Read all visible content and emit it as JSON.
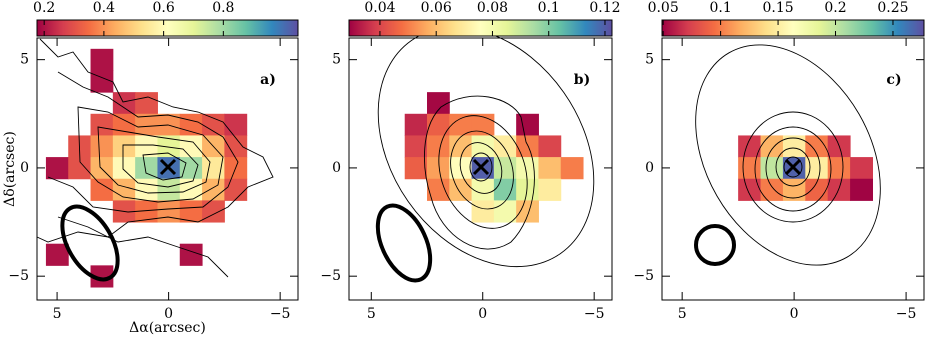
{
  "chart_data": [
    {
      "type": "heatmap",
      "label": "a)",
      "x_label": "Δα(arcsec)",
      "y_label": "Δδ(arcsec)",
      "colormap": [
        "#9e0142",
        "#d53e4f",
        "#f46d43",
        "#fdae61",
        "#fee08b",
        "#ffffbf",
        "#e6f598",
        "#abdda4",
        "#66c2a5",
        "#3288bd",
        "#5e4fa2"
      ],
      "clim": [
        0.176,
        1.05
      ],
      "colorbar_ticks": [
        0.2,
        0.4,
        0.6,
        0.8
      ],
      "xlim": [
        5.9,
        -5.8
      ],
      "ylim": [
        -6.1,
        6
      ],
      "xticks": [
        5,
        0,
        {
          "value": -5,
          "label": "−5"
        }
      ],
      "yticks": [
        5,
        0,
        {
          "value": -5,
          "label": "−5"
        }
      ],
      "x": [
        5,
        4,
        3,
        2,
        1,
        0,
        -1,
        -2,
        -3,
        -4,
        -5
      ],
      "y": [
        5,
        4,
        3,
        2,
        1,
        0,
        -1,
        -2,
        -3,
        -4,
        -5
      ],
      "z": [
        [
          null,
          null,
          0.2,
          null,
          null,
          null,
          null,
          null,
          null,
          null,
          null
        ],
        [
          null,
          null,
          0.2,
          null,
          null,
          null,
          null,
          null,
          null,
          null,
          null
        ],
        [
          null,
          null,
          null,
          0.25,
          0.3,
          null,
          null,
          null,
          null,
          null,
          null
        ],
        [
          null,
          null,
          0.3,
          0.35,
          0.4,
          0.4,
          0.35,
          0.3,
          0.25,
          null,
          null
        ],
        [
          null,
          0.3,
          0.4,
          0.5,
          0.6,
          0.7,
          0.6,
          0.45,
          0.3,
          null,
          null
        ],
        [
          0.2,
          0.3,
          0.45,
          0.6,
          0.8,
          1.0,
          0.8,
          0.55,
          0.35,
          null,
          null
        ],
        [
          null,
          null,
          0.35,
          0.45,
          0.6,
          0.75,
          0.6,
          0.45,
          0.3,
          null,
          null
        ],
        [
          null,
          null,
          null,
          0.3,
          0.35,
          0.4,
          0.35,
          0.3,
          null,
          null,
          null
        ],
        [
          null,
          null,
          null,
          null,
          null,
          null,
          null,
          null,
          null,
          null,
          null
        ],
        [
          0.2,
          null,
          null,
          null,
          null,
          null,
          0.2,
          null,
          null,
          null,
          null
        ],
        [
          null,
          null,
          0.2,
          null,
          null,
          null,
          null,
          null,
          null,
          null,
          null
        ]
      ]
    },
    {
      "type": "heatmap",
      "label": "b)",
      "colormap": [
        "#9e0142",
        "#d53e4f",
        "#f46d43",
        "#fdae61",
        "#fee08b",
        "#ffffbf",
        "#e6f598",
        "#abdda4",
        "#66c2a5",
        "#3288bd",
        "#5e4fa2"
      ],
      "clim": [
        0.029,
        0.1225
      ],
      "colorbar_ticks": [
        0.04,
        0.06,
        0.08,
        0.1,
        0.12
      ],
      "xlim": [
        6,
        -5.8
      ],
      "ylim": [
        -6.1,
        6
      ],
      "xticks": [
        5,
        0,
        {
          "value": -5,
          "label": "−5"
        }
      ],
      "yticks": [
        5,
        0,
        {
          "value": -5,
          "label": "−5"
        }
      ],
      "x": [
        5,
        4,
        3,
        2,
        1,
        0,
        -1,
        -2,
        -3,
        -4,
        -5
      ],
      "y": [
        3,
        2,
        1,
        0,
        -1,
        -2
      ],
      "z": [
        [
          null,
          null,
          null,
          0.03,
          null,
          null,
          null,
          null,
          null,
          null,
          null
        ],
        [
          null,
          null,
          0.035,
          0.045,
          0.05,
          0.05,
          null,
          0.03,
          null,
          null,
          null
        ],
        [
          null,
          null,
          0.04,
          0.05,
          0.06,
          0.08,
          0.07,
          0.05,
          0.04,
          null,
          null
        ],
        [
          null,
          null,
          0.045,
          0.055,
          0.075,
          0.12,
          0.09,
          0.08,
          0.06,
          0.05,
          null
        ],
        [
          null,
          null,
          null,
          0.05,
          0.06,
          0.08,
          0.1,
          0.085,
          0.07,
          null,
          null
        ],
        [
          null,
          null,
          null,
          null,
          null,
          0.07,
          0.08,
          0.06,
          null,
          null,
          null
        ]
      ]
    },
    {
      "type": "heatmap",
      "label": "c)",
      "colormap": [
        "#9e0142",
        "#d53e4f",
        "#f46d43",
        "#fdae61",
        "#fee08b",
        "#ffffbf",
        "#e6f598",
        "#abdda4",
        "#66c2a5",
        "#3288bd",
        "#5e4fa2"
      ],
      "clim": [
        0.049,
        0.277
      ],
      "colorbar_ticks": [
        0.05,
        0.1,
        0.15,
        0.2,
        0.25
      ],
      "xlim": [
        5.9,
        -5.8
      ],
      "ylim": [
        -6.1,
        6
      ],
      "xticks": [
        5,
        0,
        {
          "value": -5,
          "label": "−5"
        }
      ],
      "yticks": [
        5,
        0,
        {
          "value": -5,
          "label": "−5"
        }
      ],
      "x": [
        5,
        4,
        3,
        2,
        1,
        0,
        -1,
        -2,
        -3,
        -4,
        -5
      ],
      "y": [
        1,
        0,
        -1
      ],
      "z": [
        [
          null,
          null,
          null,
          0.07,
          0.12,
          0.15,
          0.1,
          0.07,
          null,
          null,
          null
        ],
        [
          null,
          null,
          null,
          0.1,
          0.2,
          0.27,
          0.15,
          0.1,
          0.07,
          null,
          null
        ],
        [
          null,
          null,
          null,
          0.07,
          0.1,
          0.12,
          0.09,
          0.07,
          0.05,
          null,
          null
        ]
      ]
    }
  ]
}
